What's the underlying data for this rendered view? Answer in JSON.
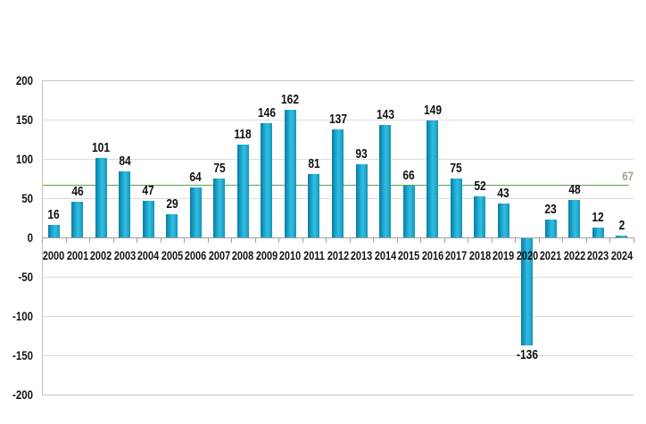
{
  "chart_data": {
    "type": "bar",
    "title": "",
    "xlabel": "",
    "ylabel": "",
    "categories": [
      "2000",
      "2001",
      "2002",
      "2003",
      "2004",
      "2005",
      "2006",
      "2007",
      "2008",
      "2009",
      "2010",
      "2011",
      "2012",
      "2013",
      "2014",
      "2015",
      "2016",
      "2017",
      "2018",
      "2019",
      "2020",
      "2021",
      "2022",
      "2023",
      "2024"
    ],
    "values": [
      16,
      46,
      101,
      84,
      47,
      29,
      64,
      75,
      118,
      146,
      162,
      81,
      137,
      93,
      143,
      66,
      149,
      75,
      52,
      43,
      -136,
      23,
      48,
      12,
      2
    ],
    "ylim": [
      -200,
      200
    ],
    "y_ticks": [
      200,
      150,
      100,
      50,
      0,
      -50,
      -100,
      -150,
      -200
    ],
    "grid": true,
    "legend": "none",
    "bar_color": "#1ba4cd",
    "bar_edge_color": "#0a7ca4",
    "gridline_color": "#dadada",
    "axis_color": "#9f9f9f",
    "label_color": "#141414",
    "ref_line": {
      "value": 67,
      "label": "67",
      "line_color": "#55a546",
      "label_color": "#96a88e"
    }
  }
}
